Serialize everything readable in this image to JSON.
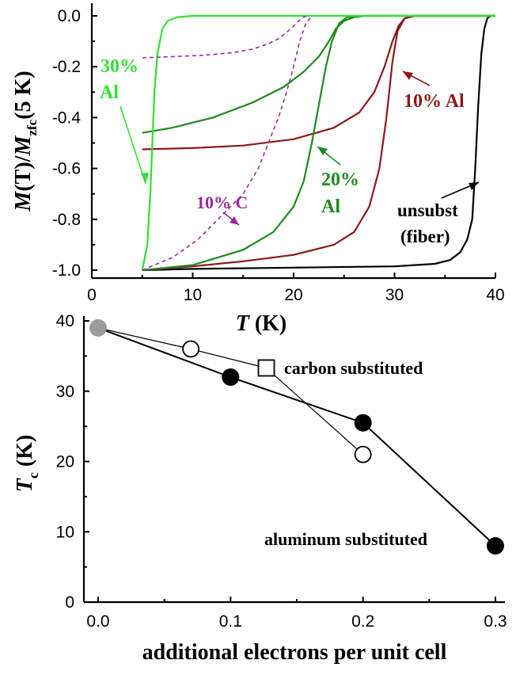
{
  "chart_data": [
    {
      "type": "line",
      "xlabel": {
        "italic": "T",
        "rest": " (K)"
      },
      "ylabel": {
        "m": "M",
        "t": "(T)/",
        "m2": "M",
        "sub": "zfc",
        "rest": "(5 K)"
      },
      "xlim": [
        0,
        40
      ],
      "ylim": [
        -1.0,
        0.0
      ],
      "xticks": [
        "0",
        "10",
        "20",
        "30",
        "40"
      ],
      "yticks": [
        "0.0",
        "-0.2",
        "-0.4",
        "-0.6",
        "-0.8",
        "-1.0"
      ],
      "colors": {
        "unsubst": "#000000",
        "al10": "#8b1a1a",
        "al20": "#1e8a1e",
        "al30": "#33e033",
        "c10": "#9b2a9b"
      },
      "annotations": {
        "al30_line1": "30%",
        "al30_line2": "Al",
        "al10": "10% Al",
        "al20_line1": "20%",
        "al20_line2": "Al",
        "c10": "10% C",
        "unsubst_line1": "unsubst",
        "unsubst_line2": "(fiber)"
      },
      "series": [
        {
          "key": "unsubst",
          "style": "solid",
          "x": [
            5,
            10,
            20,
            30,
            34,
            35.5,
            36.5,
            37.2,
            37.7,
            38,
            38.3,
            38.6,
            38.9,
            39.2,
            39.5,
            40
          ],
          "y": [
            -1.0,
            -0.995,
            -0.99,
            -0.985,
            -0.975,
            -0.96,
            -0.93,
            -0.88,
            -0.8,
            -0.6,
            -0.35,
            -0.15,
            -0.05,
            -0.01,
            0.0,
            0.0
          ]
        },
        {
          "key": "al10",
          "style": "solid",
          "x": [
            5,
            10,
            15,
            20,
            24,
            26,
            27.5,
            28.5,
            29.2,
            29.8,
            30.3,
            31,
            32,
            40
          ],
          "y": [
            -1.0,
            -0.985,
            -0.965,
            -0.94,
            -0.9,
            -0.85,
            -0.75,
            -0.6,
            -0.4,
            -0.18,
            -0.06,
            -0.01,
            0.0,
            0.0
          ]
        },
        {
          "key": "al10",
          "style": "solid",
          "x": [
            5,
            10,
            15,
            20,
            24,
            26.5,
            28,
            29,
            29.8,
            30.4,
            31,
            32,
            40
          ],
          "y": [
            -0.525,
            -0.52,
            -0.51,
            -0.485,
            -0.44,
            -0.38,
            -0.3,
            -0.2,
            -0.1,
            -0.04,
            -0.01,
            0.0,
            0.0
          ]
        },
        {
          "key": "al20",
          "style": "solid",
          "x": [
            5,
            10,
            15,
            18,
            20,
            21,
            21.8,
            22.5,
            23.2,
            23.8,
            24.5,
            25.3,
            27,
            40
          ],
          "y": [
            -1.0,
            -0.98,
            -0.92,
            -0.85,
            -0.75,
            -0.65,
            -0.5,
            -0.35,
            -0.2,
            -0.1,
            -0.03,
            -0.005,
            0.0,
            0.0
          ]
        },
        {
          "key": "al20",
          "style": "solid",
          "x": [
            5,
            8,
            12,
            16,
            19,
            21,
            22.5,
            23.5,
            24.2,
            25,
            26,
            27,
            40
          ],
          "y": [
            -0.46,
            -0.44,
            -0.4,
            -0.34,
            -0.28,
            -0.22,
            -0.16,
            -0.1,
            -0.05,
            -0.02,
            -0.005,
            0.0,
            0.0
          ]
        },
        {
          "key": "al30",
          "style": "solid",
          "x": [
            5,
            5.5,
            5.8,
            6.0,
            6.2,
            6.5,
            7.0,
            7.5,
            8.5,
            10,
            40
          ],
          "y": [
            -1.0,
            -0.9,
            -0.7,
            -0.5,
            -0.3,
            -0.15,
            -0.05,
            -0.02,
            -0.005,
            0.0,
            0.0
          ]
        },
        {
          "key": "c10",
          "style": "dashed",
          "x": [
            5,
            8,
            10.5,
            13,
            15,
            16.5,
            17.5,
            18.5,
            19.3,
            20,
            20.6,
            21.2,
            21.8
          ],
          "y": [
            -1.0,
            -0.95,
            -0.88,
            -0.78,
            -0.7,
            -0.6,
            -0.5,
            -0.4,
            -0.3,
            -0.2,
            -0.1,
            -0.03,
            0.0
          ]
        },
        {
          "key": "c10",
          "style": "dashed",
          "x": [
            5,
            8,
            11,
            14,
            16,
            17.5,
            18.5,
            19.3,
            20,
            20.5,
            21,
            21.3
          ],
          "y": [
            -0.165,
            -0.16,
            -0.155,
            -0.145,
            -0.13,
            -0.11,
            -0.09,
            -0.065,
            -0.04,
            -0.02,
            -0.005,
            0.0
          ]
        }
      ]
    },
    {
      "type": "scatter",
      "xlabel": "additional electrons per unit cell",
      "ylabel": {
        "t": "T",
        "sub": "c",
        "rest": " (K)"
      },
      "xlim": [
        0,
        0.3
      ],
      "ylim": [
        0,
        40
      ],
      "xticks": [
        "0.0",
        "0.1",
        "0.2",
        "0.3"
      ],
      "yticks": [
        "0",
        "10",
        "20",
        "30",
        "40"
      ],
      "colors": {
        "reference": "#9a9a9a",
        "filled": "#000000",
        "open": "#ffffff"
      },
      "annotations": {
        "carbon": "carbon substituted",
        "aluminum": "aluminum substituted"
      },
      "series": [
        {
          "key": "reference",
          "marker": "circle-gray",
          "x": [
            0.0
          ],
          "y": [
            39
          ]
        },
        {
          "key": "aluminum",
          "marker": "circle-filled",
          "x": [
            0.1,
            0.2,
            0.3
          ],
          "y": [
            32,
            25.5,
            8
          ]
        },
        {
          "key": "carbon",
          "marker": "circle-open",
          "x": [
            0.07,
            0.2
          ],
          "y": [
            36,
            21
          ]
        },
        {
          "key": "carbon",
          "marker": "square-open",
          "x": [
            0.127
          ],
          "y": [
            33.3
          ]
        }
      ],
      "lines": [
        {
          "key": "al-line",
          "x": [
            0.0,
            0.1,
            0.2,
            0.3
          ],
          "y": [
            39,
            32,
            25.5,
            8
          ],
          "width": 2
        },
        {
          "key": "c-line1",
          "x": [
            0.0,
            0.07,
            0.127
          ],
          "y": [
            39,
            36,
            33.3
          ],
          "width": 1.2
        },
        {
          "key": "c-line2",
          "x": [
            0.127,
            0.2
          ],
          "y": [
            33.3,
            21
          ],
          "width": 1.2
        }
      ]
    }
  ]
}
